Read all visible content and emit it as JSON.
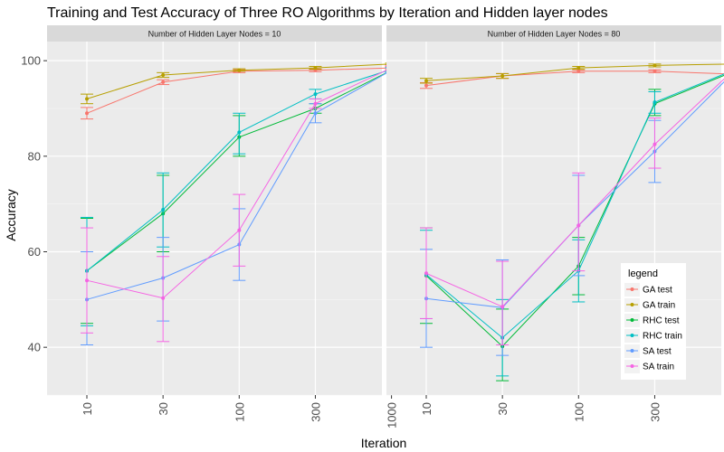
{
  "chart_data": {
    "type": "line",
    "title": "Training and Test Accuracy of Three RO Algorithms by Iteration and Hidden layer nodes",
    "xlabel": "Iteration",
    "ylabel": "Accuracy",
    "categories": [
      "10",
      "30",
      "100",
      "300",
      "1000"
    ],
    "yticks": [
      40,
      60,
      80,
      100
    ],
    "ylim": [
      30,
      104
    ],
    "grid": true,
    "legend": {
      "title": "legend",
      "position": "right-bottom",
      "entries": [
        "GA test",
        "GA train",
        "RHC test",
        "RHC train",
        "SA test",
        "SA train"
      ]
    },
    "series_colors": {
      "GA test": "#F8766D",
      "GA train": "#B79F00",
      "RHC test": "#00BA38",
      "RHC train": "#00BFC4",
      "SA test": "#619CFF",
      "SA train": "#F564E3"
    },
    "panels": [
      {
        "strip": "Number of Hidden Layer Nodes = 10",
        "series": [
          {
            "name": "GA test",
            "values": [
              89,
              95.5,
              97.8,
              98,
              98.5
            ],
            "low": [
              87.8,
              95,
              97.5,
              97.7,
              98.2
            ],
            "high": [
              90.2,
              96,
              98.1,
              98.3,
              98.8
            ]
          },
          {
            "name": "GA train",
            "values": [
              92,
              97,
              98,
              98.5,
              99.3
            ],
            "low": [
              91,
              96.5,
              97.8,
              98.2,
              99.1
            ],
            "high": [
              93,
              97.5,
              98.3,
              98.8,
              99.5
            ]
          },
          {
            "name": "RHC test",
            "values": [
              56,
              68,
              84,
              90,
              98
            ],
            "low": [
              45,
              60,
              80,
              89,
              97.5
            ],
            "high": [
              67,
              76,
              88.5,
              91,
              98.5
            ]
          },
          {
            "name": "RHC train",
            "values": [
              56,
              68.8,
              85,
              93,
              98.2
            ],
            "low": [
              44.5,
              61,
              80.5,
              92,
              97.8
            ],
            "high": [
              67.2,
              76.5,
              89,
              94,
              98.6
            ]
          },
          {
            "name": "SA test",
            "values": [
              50,
              54.5,
              61.5,
              89,
              98
            ],
            "low": [
              40.5,
              45.5,
              54,
              87,
              97.5
            ],
            "high": [
              60,
              63,
              69,
              91,
              98.5
            ]
          },
          {
            "name": "SA train",
            "values": [
              54,
              50.3,
              64.5,
              91,
              98.5
            ],
            "low": [
              43,
              41.2,
              57,
              90,
              98
            ],
            "high": [
              65,
              59,
              72,
              92,
              99
            ]
          }
        ]
      },
      {
        "strip": "Number of Hidden Layer Nodes = 80",
        "series": [
          {
            "name": "GA test",
            "values": [
              94.8,
              96.8,
              97.8,
              97.8,
              97.2
            ],
            "low": [
              94.2,
              96.3,
              97.5,
              97.5,
              96.9
            ],
            "high": [
              95.4,
              97.3,
              98.1,
              98.1,
              97.5
            ]
          },
          {
            "name": "GA train",
            "values": [
              95.8,
              96.8,
              98.5,
              99,
              99.3
            ],
            "low": [
              95.3,
              96.3,
              98.2,
              98.7,
              99.1
            ],
            "high": [
              96.3,
              97.3,
              98.8,
              99.3,
              99.5
            ]
          },
          {
            "name": "RHC test",
            "values": [
              55,
              40.2,
              57,
              91,
              97.5
            ],
            "low": [
              45,
              33,
              51,
              88.5,
              97
            ],
            "high": [
              65,
              48,
              63,
              94,
              98
            ]
          },
          {
            "name": "RHC train",
            "values": [
              55.2,
              42,
              56,
              91.3,
              97.8
            ],
            "low": [
              46,
              34,
              49.5,
              89,
              97.3
            ],
            "high": [
              64.5,
              50,
              62.5,
              93.5,
              98.2
            ]
          },
          {
            "name": "SA test",
            "values": [
              50.2,
              48.3,
              65.5,
              81,
              97
            ],
            "low": [
              40,
              38.3,
              55,
              74.5,
              96
            ],
            "high": [
              60.5,
              58.3,
              76,
              87.5,
              98
            ]
          },
          {
            "name": "SA train",
            "values": [
              55.5,
              48.5,
              65.5,
              82.5,
              97.5
            ],
            "low": [
              46,
              40.5,
              56,
              77.5,
              97
            ],
            "high": [
              65,
              58,
              76.5,
              88,
              98
            ]
          }
        ]
      }
    ]
  }
}
